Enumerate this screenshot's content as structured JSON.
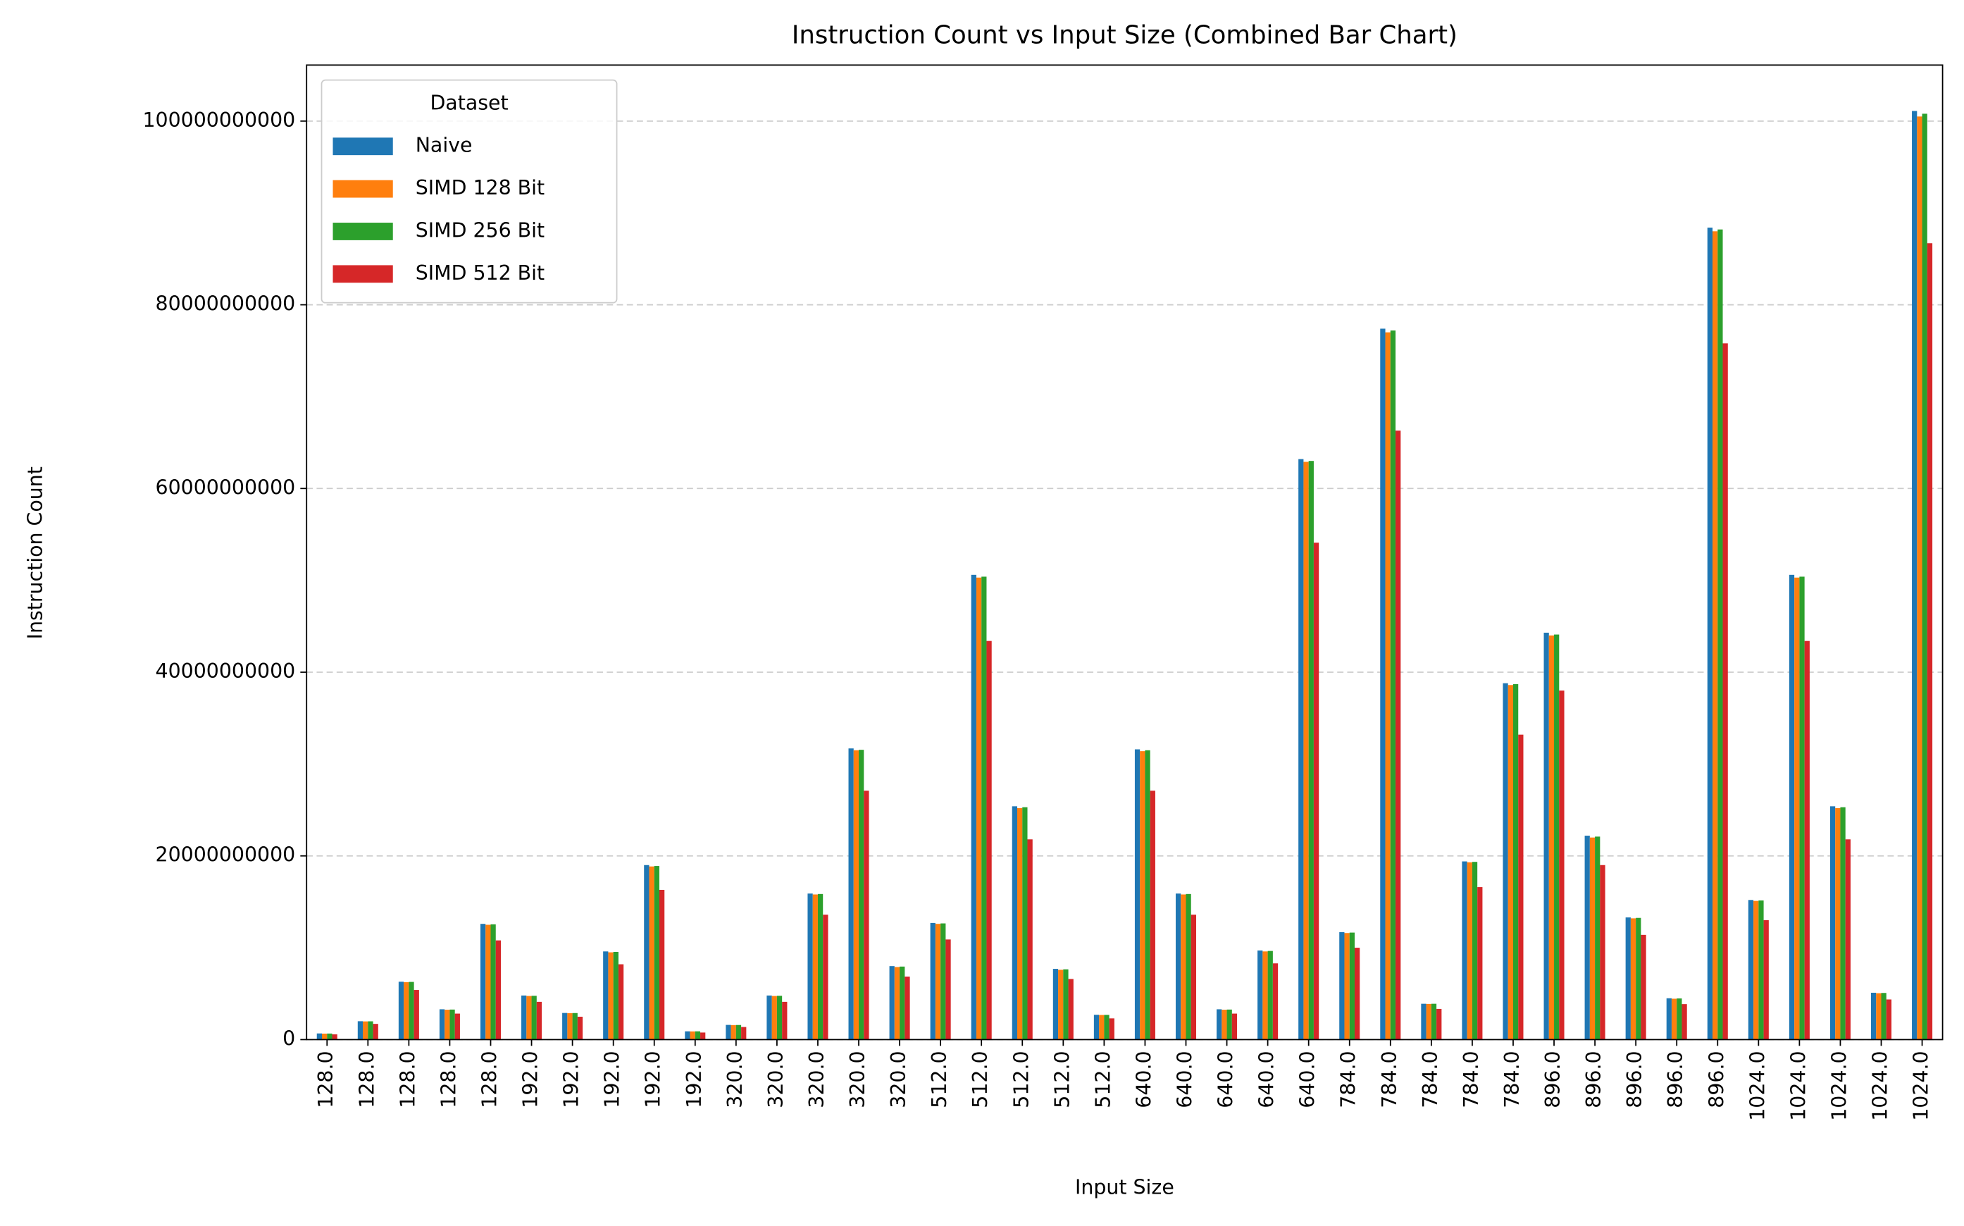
{
  "chart_data": {
    "type": "bar",
    "title": "Instruction Count vs Input Size (Combined Bar Chart)",
    "x_label": "Input Size",
    "y_label": "Instruction Count",
    "legend_title": "Dataset",
    "legend_position": "upper left",
    "grid": true,
    "categories": [
      "128.0",
      "128.0",
      "128.0",
      "128.0",
      "128.0",
      "192.0",
      "192.0",
      "192.0",
      "192.0",
      "192.0",
      "320.0",
      "320.0",
      "320.0",
      "320.0",
      "320.0",
      "512.0",
      "512.0",
      "512.0",
      "512.0",
      "512.0",
      "640.0",
      "640.0",
      "640.0",
      "640.0",
      "640.0",
      "784.0",
      "784.0",
      "784.0",
      "784.0",
      "784.0",
      "896.0",
      "896.0",
      "896.0",
      "896.0",
      "896.0",
      "1024.0",
      "1024.0",
      "1024.0",
      "1024.0",
      "1024.0"
    ],
    "ylim": [
      0,
      106100000000
    ],
    "yticks": [
      0,
      20000000000,
      40000000000,
      60000000000,
      80000000000,
      100000000000
    ],
    "series": [
      {
        "name": "Naive",
        "color": "#1f77b4",
        "values": [
          670000000.0,
          2000000000.0,
          6300000000.0,
          3300000000.0,
          12600000000.0,
          4800000000.0,
          2900000000.0,
          9600000000.0,
          19000000000.0,
          900000000.0,
          1600000000.0,
          4800000000.0,
          15900000000.0,
          31700000000.0,
          8000000000.0,
          12700000000.0,
          50600000000.0,
          25400000000.0,
          7700000000.0,
          2700000000.0,
          31600000000.0,
          15900000000.0,
          3300000000.0,
          9700000000.0,
          63200000000.0,
          11700000000.0,
          77400000000.0,
          3900000000.0,
          19400000000.0,
          38800000000.0,
          44300000000.0,
          22200000000.0,
          13300000000.0,
          4500000000.0,
          88400000000.0,
          15200000000.0,
          50600000000.0,
          25400000000.0,
          5100000000.0,
          101100000000.0
        ]
      },
      {
        "name": "SIMD 128 Bit",
        "color": "#ff7f0e",
        "values": [
          650000000.0,
          1980000000.0,
          6250000000.0,
          3250000000.0,
          12500000000.0,
          4750000000.0,
          2880000000.0,
          9500000000.0,
          18850000000.0,
          890000000.0,
          1580000000.0,
          4750000000.0,
          15800000000.0,
          31500000000.0,
          7900000000.0,
          12600000000.0,
          50300000000.0,
          25200000000.0,
          7600000000.0,
          2680000000.0,
          31400000000.0,
          15800000000.0,
          3250000000.0,
          9600000000.0,
          62900000000.0,
          11600000000.0,
          77000000000.0,
          3880000000.0,
          19300000000.0,
          38600000000.0,
          44000000000.0,
          22000000000.0,
          13200000000.0,
          4450000000.0,
          88000000000.0,
          15100000000.0,
          50300000000.0,
          25200000000.0,
          5050000000.0,
          100500000000.0
        ]
      },
      {
        "name": "SIMD 256 Bit",
        "color": "#2ca02c",
        "values": [
          660000000.0,
          1990000000.0,
          6280000000.0,
          3270000000.0,
          12550000000.0,
          4770000000.0,
          2890000000.0,
          9550000000.0,
          18900000000.0,
          900000000.0,
          1590000000.0,
          4770000000.0,
          15850000000.0,
          31550000000.0,
          7950000000.0,
          12650000000.0,
          50400000000.0,
          25300000000.0,
          7650000000.0,
          2690000000.0,
          31500000000.0,
          15850000000.0,
          3270000000.0,
          9650000000.0,
          63000000000.0,
          11650000000.0,
          77200000000.0,
          3900000000.0,
          19350000000.0,
          38700000000.0,
          44100000000.0,
          22100000000.0,
          13250000000.0,
          4480000000.0,
          88200000000.0,
          15150000000.0,
          50400000000.0,
          25300000000.0,
          5080000000.0,
          100800000000.0
        ]
      },
      {
        "name": "SIMD 512 Bit",
        "color": "#d62728",
        "values": [
          570000000.0,
          1710000000.0,
          5400000000.0,
          2830000000.0,
          10800000000.0,
          4110000000.0,
          2490000000.0,
          8200000000.0,
          16300000000.0,
          770000000.0,
          1370000000.0,
          4110000000.0,
          13600000000.0,
          27100000000.0,
          6860000000.0,
          10900000000.0,
          43400000000.0,
          21800000000.0,
          6600000000.0,
          2310000000.0,
          27100000000.0,
          13600000000.0,
          2830000000.0,
          8300000000.0,
          54100000000.0,
          10000000000.0,
          66300000000.0,
          3340000000.0,
          16600000000.0,
          33200000000.0,
          38000000000.0,
          19000000000.0,
          11400000000.0,
          3860000000.0,
          75800000000.0,
          13000000000.0,
          43400000000.0,
          21800000000.0,
          4370000000.0,
          86700000000.0
        ]
      }
    ]
  }
}
